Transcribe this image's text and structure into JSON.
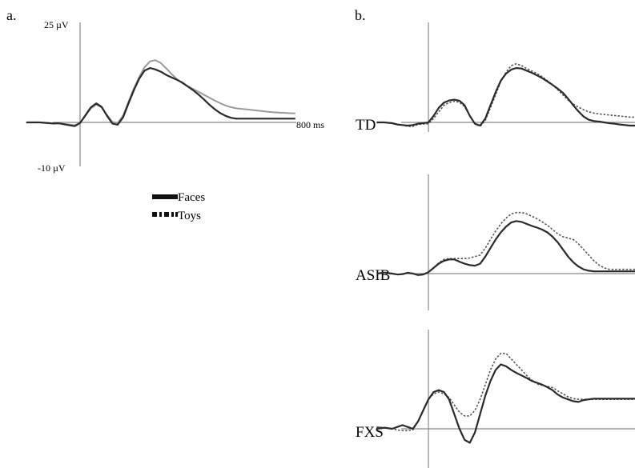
{
  "panels": {
    "a": {
      "label": "a.",
      "y_top_label": "25 µV",
      "y_bottom_label": "-10 µV",
      "x_end_label": "800 ms"
    },
    "b": {
      "label": "b.",
      "groups": [
        "TD",
        "ASIB",
        "FXS"
      ]
    }
  },
  "legend": {
    "faces": "Faces",
    "toys": "Toys"
  },
  "colors": {
    "faces": "#2a2a2a",
    "toys_a": "#9a9a9a",
    "toys_b": "#555555",
    "axis": "#888888"
  },
  "chart_data": [
    {
      "type": "line",
      "panel": "a",
      "x_unit": "ms",
      "y_unit": "µV",
      "xlim": [
        -200,
        800
      ],
      "ylim": [
        -10,
        25
      ],
      "x": [
        -200,
        -150,
        -100,
        -80,
        -50,
        -20,
        0,
        20,
        40,
        60,
        80,
        100,
        120,
        140,
        160,
        180,
        200,
        220,
        240,
        260,
        280,
        300,
        320,
        340,
        360,
        380,
        400,
        420,
        440,
        460,
        480,
        500,
        520,
        540,
        560,
        580,
        600,
        620,
        640,
        660,
        680,
        700,
        720,
        740,
        760,
        780,
        800
      ],
      "series": [
        {
          "name": "Faces",
          "values": [
            0,
            0,
            -0.4,
            -0.3,
            -0.8,
            -1.3,
            -0.2,
            2.5,
            5.2,
            6.6,
            5.4,
            2.3,
            -0.4,
            -0.8,
            1.8,
            6.6,
            11.2,
            15.2,
            18,
            18.9,
            18.4,
            17.6,
            16.5,
            15.6,
            14.8,
            13.8,
            12.5,
            11.2,
            9.7,
            8,
            6.2,
            4.6,
            3.3,
            2.3,
            1.6,
            1.3,
            1.3,
            1.3,
            1.3,
            1.3,
            1.3,
            1.3,
            1.3,
            1.3,
            1.3,
            1.3,
            1.3
          ]
        },
        {
          "name": "Toys",
          "values": [
            0,
            0,
            -0.3,
            -0.3,
            -0.6,
            -1,
            -0.2,
            2.3,
            4.8,
            6.2,
            5.2,
            2.6,
            0.2,
            -0.2,
            2.4,
            7.2,
            11.8,
            15.8,
            19.2,
            21.2,
            21.6,
            20.6,
            18.8,
            16.8,
            15,
            13.6,
            12.6,
            11.6,
            10.6,
            9.6,
            8.6,
            7.6,
            6.7,
            5.9,
            5.3,
            4.9,
            4.7,
            4.5,
            4.3,
            4.1,
            3.9,
            3.7,
            3.5,
            3.4,
            3.3,
            3.2,
            3.1
          ]
        }
      ]
    },
    {
      "type": "line",
      "panel": "b",
      "group": "TD",
      "x": [
        -200,
        -170,
        -140,
        -120,
        -100,
        -80,
        -60,
        -40,
        -20,
        0,
        20,
        40,
        60,
        80,
        100,
        120,
        140,
        160,
        180,
        200,
        220,
        240,
        260,
        280,
        300,
        320,
        340,
        360,
        380,
        400,
        420,
        440,
        460,
        480,
        500,
        520,
        540,
        560,
        580,
        600,
        620,
        640,
        660,
        680,
        700,
        720,
        740,
        760,
        780,
        800
      ],
      "series": [
        {
          "name": "Faces",
          "values": [
            0,
            0,
            -0.3,
            -0.8,
            -1,
            -1.2,
            -1,
            -0.5,
            -0.3,
            0,
            2.5,
            5.5,
            7.5,
            8.3,
            8.6,
            8.2,
            6.5,
            2.5,
            -0.5,
            -1.2,
            1.5,
            6.5,
            11.5,
            15.8,
            18.5,
            20,
            20.6,
            20.4,
            19.6,
            18.8,
            17.8,
            16.8,
            15.5,
            14.2,
            12.8,
            11.2,
            9,
            6.5,
            4.2,
            2.2,
            1,
            0.5,
            0.3,
            0,
            -0.3,
            -0.5,
            -0.8,
            -1,
            -1.2,
            -1.2
          ]
        },
        {
          "name": "Toys",
          "values": [
            0,
            0,
            -0.3,
            -0.8,
            -1,
            -1.5,
            -1.5,
            -0.8,
            -0.6,
            -0.5,
            1.5,
            4,
            6.5,
            7.5,
            8,
            7.6,
            6,
            2.5,
            -0.5,
            -1.5,
            0.8,
            5.5,
            10.5,
            15.5,
            19,
            21.5,
            22.2,
            21.5,
            20.4,
            19.5,
            18.5,
            17.3,
            15.8,
            14.2,
            12.4,
            10.4,
            8.5,
            7,
            5.8,
            4.8,
            4,
            3.5,
            3.2,
            3,
            2.8,
            2.6,
            2.4,
            2.2,
            2,
            2
          ]
        }
      ]
    },
    {
      "type": "line",
      "panel": "b",
      "group": "ASIB",
      "x": [
        -200,
        -170,
        -140,
        -120,
        -100,
        -80,
        -60,
        -40,
        -20,
        0,
        20,
        40,
        60,
        80,
        100,
        120,
        140,
        160,
        180,
        200,
        220,
        240,
        260,
        280,
        300,
        320,
        340,
        360,
        380,
        400,
        420,
        440,
        460,
        480,
        500,
        520,
        540,
        560,
        580,
        600,
        620,
        640,
        660,
        680,
        700,
        720,
        740,
        760,
        780,
        800
      ],
      "series": [
        {
          "name": "Faces",
          "values": [
            0,
            0.3,
            0,
            -0.3,
            -0.2,
            0.3,
            0,
            -0.5,
            -0.3,
            0.5,
            2,
            3.5,
            4.5,
            5,
            5,
            4.2,
            3.5,
            3,
            2.8,
            3.5,
            6,
            9,
            12,
            14.5,
            16.5,
            18,
            18.5,
            18.2,
            17.5,
            16.8,
            16.2,
            15.5,
            14.5,
            13,
            11,
            8.5,
            6,
            4,
            2.5,
            1.5,
            1,
            0.8,
            0.8,
            0.8,
            0.8,
            0.8,
            0.8,
            0.8,
            0.8,
            0.8
          ]
        },
        {
          "name": "Toys",
          "values": [
            0,
            0.3,
            0,
            -0.3,
            -0.2,
            0.3,
            0,
            -0.5,
            -0.3,
            0.5,
            2,
            3.8,
            5,
            5.3,
            5.3,
            5.3,
            5.3,
            5.5,
            6,
            6.5,
            9,
            12,
            15,
            17.5,
            19.5,
            21,
            21.5,
            21.5,
            21,
            20.2,
            19.3,
            18.2,
            17,
            15.5,
            14,
            13,
            12.5,
            12,
            10.5,
            8.5,
            6.5,
            4.5,
            3,
            2,
            1.5,
            1.5,
            1.5,
            1.5,
            1.5,
            1.5
          ]
        }
      ]
    },
    {
      "type": "line",
      "panel": "b",
      "group": "FXS",
      "x": [
        -200,
        -170,
        -140,
        -120,
        -100,
        -80,
        -60,
        -40,
        -20,
        0,
        20,
        40,
        60,
        80,
        100,
        120,
        140,
        160,
        180,
        200,
        220,
        240,
        260,
        280,
        300,
        320,
        340,
        360,
        380,
        400,
        420,
        440,
        460,
        480,
        500,
        520,
        540,
        560,
        580,
        600,
        620,
        640,
        660,
        680,
        700,
        720,
        740,
        760,
        780,
        800
      ],
      "series": [
        {
          "name": "Faces",
          "values": [
            0,
            0.3,
            0,
            0.5,
            1,
            0.5,
            0,
            2,
            5,
            8,
            10,
            10.5,
            10,
            8,
            4,
            0,
            -3,
            -3.8,
            -1,
            4,
            9,
            13,
            16,
            17.5,
            17,
            16,
            15.2,
            14.5,
            13.8,
            13,
            12.5,
            12,
            11.3,
            10.5,
            9.3,
            8.5,
            8,
            7.5,
            7.3,
            7.8,
            8,
            8.2,
            8.2,
            8.2,
            8.2,
            8.2,
            8.2,
            8.2,
            8.2,
            8.2
          ]
        },
        {
          "name": "Toys",
          "values": [
            0.5,
            0.3,
            0,
            -0.3,
            -0.5,
            -0.5,
            -0.3,
            2,
            5,
            8,
            9.5,
            10,
            9.5,
            8.5,
            6.5,
            4.5,
            3.5,
            3.5,
            5,
            8,
            12,
            16,
            19,
            20.5,
            20.5,
            19,
            17.5,
            16,
            14.5,
            13.2,
            12.2,
            11.8,
            11.5,
            11.2,
            10.3,
            9.5,
            8.7,
            8.2,
            8,
            8,
            8,
            8,
            8,
            8,
            8,
            8,
            8,
            8,
            8,
            8
          ]
        }
      ]
    }
  ]
}
